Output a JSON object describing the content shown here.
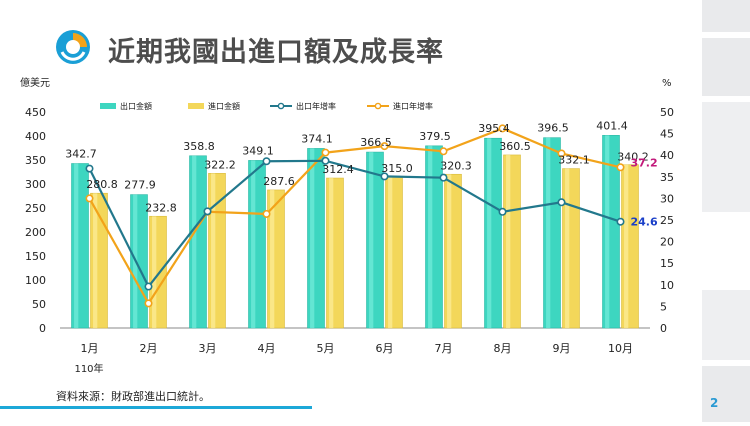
{
  "slide": {
    "title": "近期我國出進口額及成長率",
    "source": "資料來源：財政部進出口統計。",
    "page_number": "2"
  },
  "colors": {
    "export_bar": "#3dd6c0",
    "import_bar": "#f3d75a",
    "export_growth": "#22788c",
    "import_growth": "#f2a31a",
    "title": "#4d4d4d",
    "accent": "#1da8d8"
  },
  "chart_data": {
    "type": "bar+line",
    "left_axis_unit": "億美元",
    "right_axis_unit": "%",
    "categories": [
      "1月",
      "2月",
      "3月",
      "4月",
      "5月",
      "6月",
      "7月",
      "8月",
      "9月",
      "10月"
    ],
    "year_label": "110年",
    "left_ylim": [
      0,
      450
    ],
    "left_ticks": [
      0,
      50,
      100,
      150,
      200,
      250,
      300,
      350,
      400,
      450
    ],
    "right_ylim": [
      0,
      50
    ],
    "right_ticks": [
      0,
      5,
      10,
      15,
      20,
      25,
      30,
      35,
      40,
      45,
      50
    ],
    "legend": [
      "出口金額",
      "進口金額",
      "出口年增率",
      "進口年增率"
    ],
    "series": [
      {
        "name": "出口金額",
        "kind": "bar",
        "axis": "left",
        "values": [
          342.7,
          277.9,
          358.8,
          349.1,
          374.1,
          366.5,
          379.5,
          395.4,
          396.5,
          401.4
        ],
        "labels": [
          "342.7",
          "277.9",
          "358.8",
          "349.1",
          "374.1",
          "366.5",
          "379.5",
          "395.4",
          "396.5",
          "401.4"
        ]
      },
      {
        "name": "進口金額",
        "kind": "bar",
        "axis": "left",
        "values": [
          280.8,
          232.8,
          322.2,
          287.6,
          312.4,
          315.0,
          320.3,
          360.5,
          332.1,
          340.2
        ],
        "labels": [
          "280.8",
          "232.8",
          "322.2",
          "287.6",
          "312.4",
          "315.0",
          "320.3",
          "360.5",
          "332.1",
          "340.2"
        ]
      },
      {
        "name": "出口年增率",
        "kind": "line",
        "axis": "right",
        "values": [
          36.9,
          9.6,
          27.0,
          38.6,
          38.7,
          35.1,
          34.8,
          26.9,
          29.1,
          24.6
        ],
        "end_label": "24.6"
      },
      {
        "name": "進口年增率",
        "kind": "line",
        "axis": "right",
        "values": [
          30.0,
          5.7,
          26.9,
          26.4,
          40.6,
          42.1,
          40.9,
          46.2,
          40.4,
          37.2
        ],
        "end_label": "37.2"
      }
    ]
  }
}
